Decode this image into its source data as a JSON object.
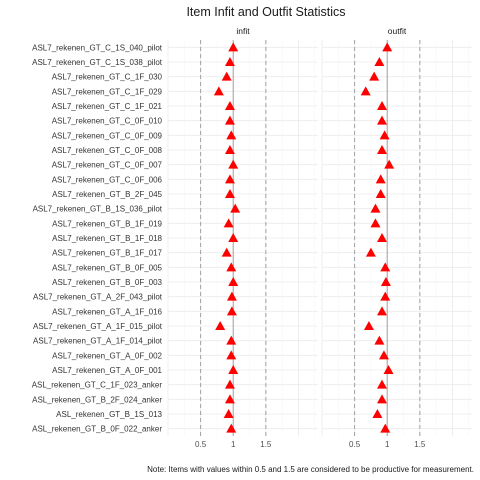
{
  "chart_data": {
    "type": "scatter",
    "title": "Item Infit and Outfit Statistics",
    "caption": "Note: Items with values within 0.5 and 1.5 are considered to be productive for measurement.",
    "xlim": [
      0,
      2.3
    ],
    "x_ticks": [
      0.5,
      1.0,
      1.5
    ],
    "x_tick_labels": [
      "0.5",
      "1",
      "1.5"
    ],
    "reference_lines": {
      "solid": 1.0,
      "dashed": [
        0.5,
        1.5
      ]
    },
    "marker": "triangle",
    "marker_color": "#ff0000",
    "grid": true,
    "items": [
      "ASL7_rekenen_GT_C_1S_040_pilot",
      "ASL7_rekenen_GT_C_1S_038_pilot",
      "ASL7_rekenen_GT_C_1F_030",
      "ASL7_rekenen_GT_C_1F_029",
      "ASL7_rekenen_GT_C_1F_021",
      "ASL7_rekenen_GT_C_0F_010",
      "ASL7_rekenen_GT_C_0F_009",
      "ASL7_rekenen_GT_C_0F_008",
      "ASL7_rekenen_GT_C_0F_007",
      "ASL7_rekenen_GT_C_0F_006",
      "ASL7_rekenen_GT_B_2F_045",
      "ASL7_rekenen_GT_B_1S_036_pilot",
      "ASL7_rekenen_GT_B_1F_019",
      "ASL7_rekenen_GT_B_1F_018",
      "ASL7_rekenen_GT_B_1F_017",
      "ASL7_rekenen_GT_B_0F_005",
      "ASL7_rekenen_GT_B_0F_003",
      "ASL7_rekenen_GT_A_2F_043_pilot",
      "ASL7_rekenen_GT_A_1F_016",
      "ASL7_rekenen_GT_A_1F_015_pilot",
      "ASL7_rekenen_GT_A_1F_014_pilot",
      "ASL7_rekenen_GT_A_0F_002",
      "ASL7_rekenen_GT_A_0F_001",
      "ASL_rekenen_GT_C_1F_023_anker",
      "ASL_rekenen_GT_B_2F_024_anker",
      "ASL_rekenen_GT_B_1S_013",
      "ASL_rekenen_GT_B_0F_022_anker"
    ],
    "series": [
      {
        "name": "infit",
        "values": [
          1.0,
          0.95,
          0.9,
          0.78,
          0.95,
          0.95,
          0.97,
          0.95,
          1.0,
          0.95,
          0.95,
          1.03,
          0.93,
          1.0,
          0.9,
          0.97,
          1.0,
          0.98,
          0.98,
          0.8,
          0.97,
          0.97,
          1.0,
          0.95,
          0.95,
          0.93,
          0.97
        ]
      },
      {
        "name": "outfit",
        "values": [
          1.0,
          0.88,
          0.8,
          0.67,
          0.92,
          0.92,
          0.96,
          0.92,
          1.03,
          0.9,
          0.9,
          0.82,
          0.82,
          0.92,
          0.75,
          0.97,
          0.98,
          0.97,
          0.92,
          0.72,
          0.88,
          0.95,
          1.02,
          0.92,
          0.92,
          0.85,
          0.97
        ]
      }
    ]
  }
}
